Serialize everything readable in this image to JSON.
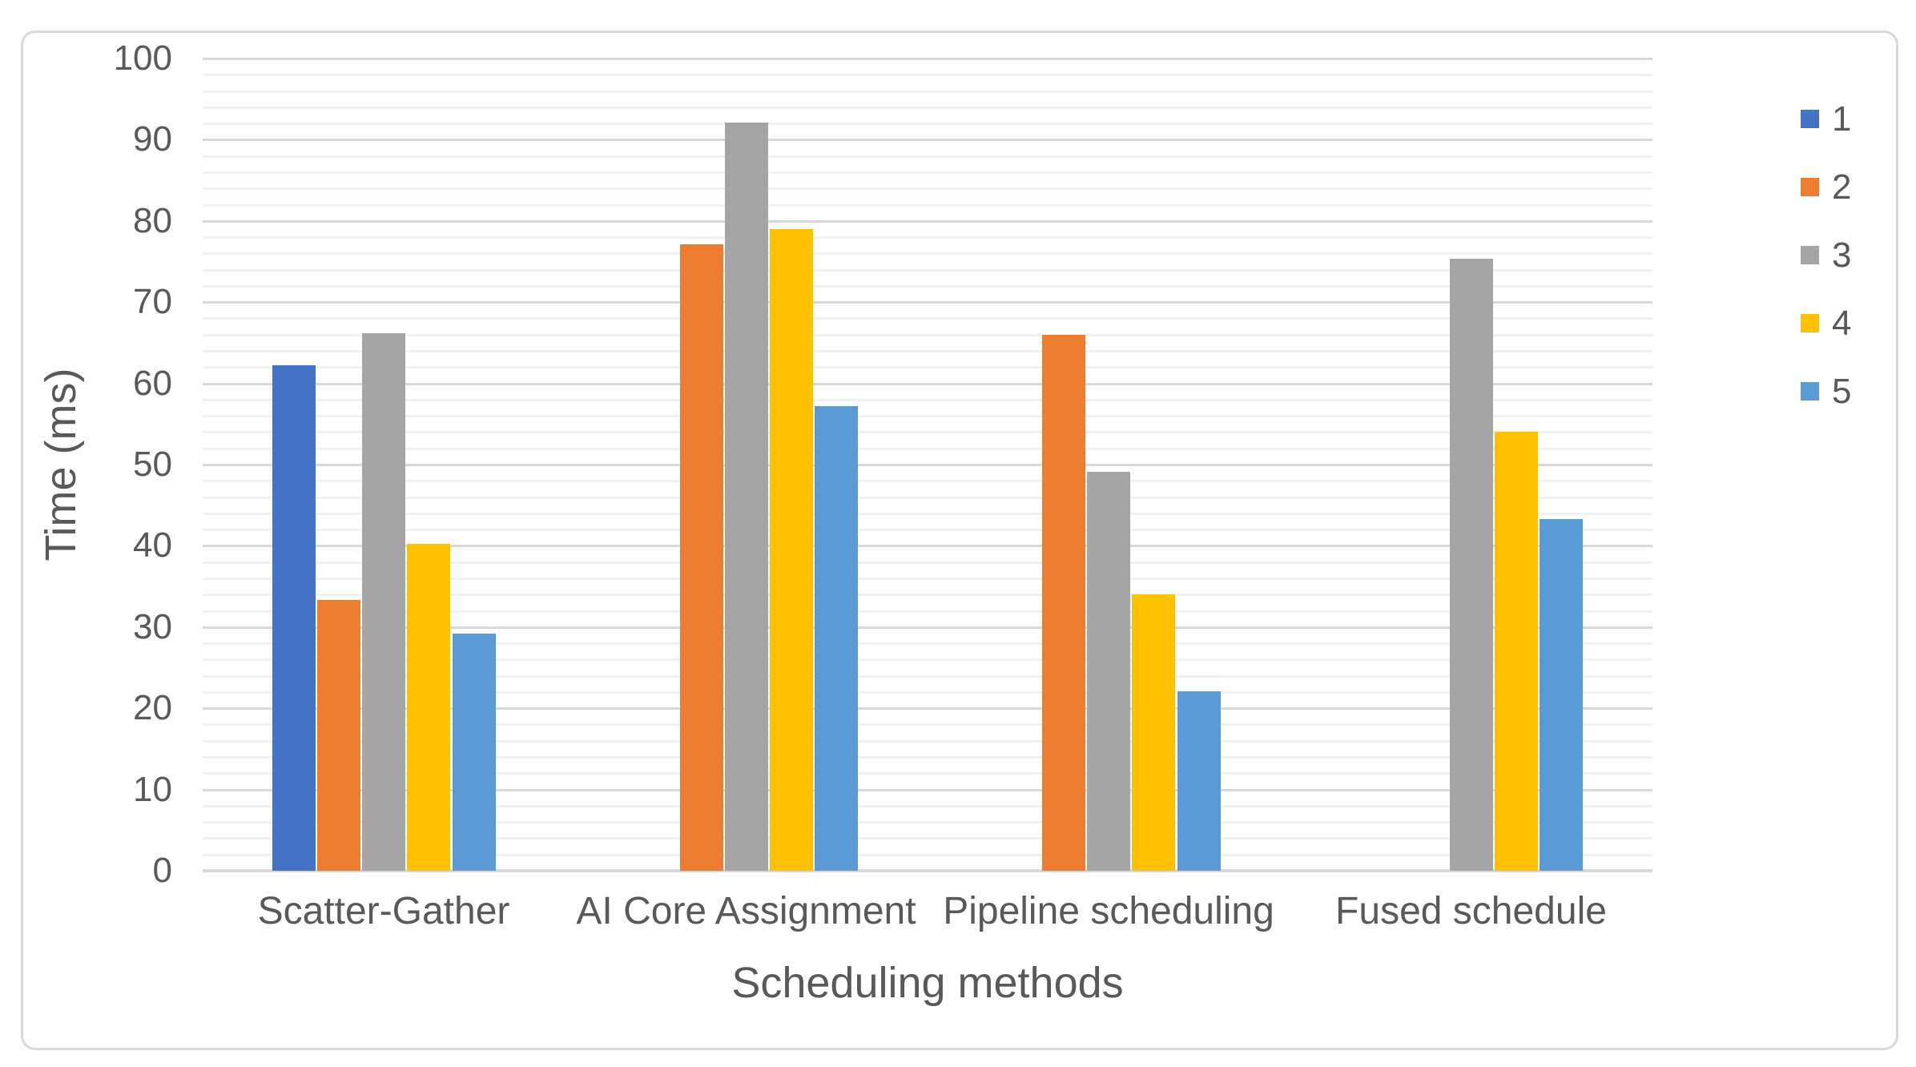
{
  "chart_data": {
    "type": "bar",
    "title": "",
    "xlabel": "Scheduling methods",
    "ylabel": "Time (ms)",
    "categories": [
      "Scatter-Gather",
      "AI Core Assignment",
      "Pipeline scheduling",
      "Fused schedule"
    ],
    "series": [
      {
        "name": "1",
        "color": "#4472C4",
        "values": [
          62.2,
          null,
          null,
          null
        ]
      },
      {
        "name": "2",
        "color": "#ED7D31",
        "values": [
          33.3,
          77.1,
          66.0,
          null
        ]
      },
      {
        "name": "3",
        "color": "#A5A5A5",
        "values": [
          66.2,
          92.1,
          49.1,
          75.3
        ]
      },
      {
        "name": "4",
        "color": "#FFC000",
        "values": [
          40.2,
          79.0,
          34.0,
          54.0
        ]
      },
      {
        "name": "5",
        "color": "#5B9BD5",
        "values": [
          29.2,
          57.2,
          22.1,
          43.3
        ]
      }
    ],
    "ylim": [
      0,
      100
    ],
    "y_major_ticks": [
      0,
      10,
      20,
      30,
      40,
      50,
      60,
      70,
      80,
      90,
      100
    ],
    "y_minor_step": 2,
    "grid": "horizontal, major and minor lines",
    "legend_position": "right",
    "legend_entries": [
      "1",
      "2",
      "3",
      "4",
      "5"
    ]
  },
  "styles": {
    "text_color": "#595959",
    "major_grid_color": "#D9D9D9",
    "minor_grid_color": "#F2F2F2",
    "axis_line_color": "#D9D9D9",
    "frame_border_color": "#D9D9D9",
    "background_color": "#FFFFFF"
  }
}
